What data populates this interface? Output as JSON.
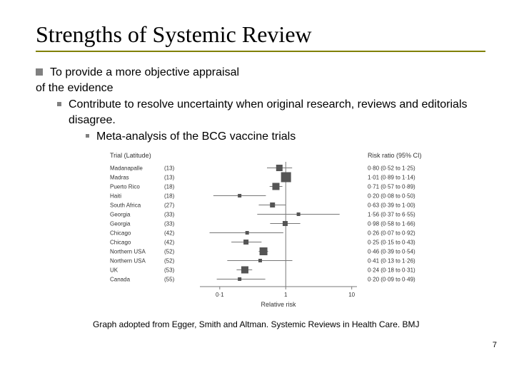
{
  "slide": {
    "title": "Strengths of Systemic Review",
    "bullet1_line1": "To provide a more objective appraisal",
    "bullet1_line2": "of the evidence",
    "bullet2": "Contribute to resolve uncertainty when original research, reviews and editorials disagree.",
    "bullet3": "Meta-analysis of the BCG vaccine trials",
    "caption": "Graph adopted from Egger, Smith and Altman. Systemic Reviews in Health Care. BMJ",
    "page_number": "7"
  },
  "forest": {
    "type": "forest-plot",
    "left_header": "Trial (Latitude)",
    "right_header": "Risk ratio (95% CI)",
    "x_label": "Relative risk",
    "x_scale": "log",
    "x_ticks": [
      0.1,
      1,
      10
    ],
    "x_tick_labels": [
      "0·1",
      "1",
      "10"
    ],
    "xlim": [
      0.05,
      12
    ],
    "font_family": "sans-serif",
    "font_size_pt": 8,
    "background_color": "#ffffff",
    "axis_color": "#7a7a7a",
    "marker_color": "#555555",
    "ci_line_color": "#777777",
    "ci_line_width": 1,
    "trials": [
      {
        "label": "Madanapalle",
        "lat": 13,
        "rr": 0.8,
        "lo": 0.52,
        "hi": 1.25,
        "rr_txt": "0·80 (0·52 to 1·25)",
        "size": 9
      },
      {
        "label": "Madras",
        "lat": 13,
        "rr": 1.01,
        "lo": 0.89,
        "hi": 1.14,
        "rr_txt": "1·01 (0·89 to 1·14)",
        "size": 14
      },
      {
        "label": "Puerto Rico",
        "lat": 18,
        "rr": 0.71,
        "lo": 0.57,
        "hi": 0.89,
        "rr_txt": "0·71 (0·57 to 0·89)",
        "size": 10
      },
      {
        "label": "Haiti",
        "lat": 18,
        "rr": 0.2,
        "lo": 0.08,
        "hi": 0.5,
        "rr_txt": "0·20 (0·08 to 0·50)",
        "size": 5
      },
      {
        "label": "South Africa",
        "lat": 27,
        "rr": 0.63,
        "lo": 0.39,
        "hi": 1.0,
        "rr_txt": "0·63 (0·39 to 1·00)",
        "size": 7
      },
      {
        "label": "Georgia",
        "lat": 33,
        "rr": 1.56,
        "lo": 0.37,
        "hi": 6.55,
        "rr_txt": "1·56 (0·37 to 6·55)",
        "size": 5
      },
      {
        "label": "Georgia",
        "lat": 33,
        "rr": 0.98,
        "lo": 0.58,
        "hi": 1.66,
        "rr_txt": "0·98 (0·58 to 1·66)",
        "size": 7
      },
      {
        "label": "Chicago",
        "lat": 42,
        "rr": 0.26,
        "lo": 0.07,
        "hi": 0.92,
        "rr_txt": "0·26 (0·07 to 0·92)",
        "size": 5
      },
      {
        "label": "Chicago",
        "lat": 42,
        "rr": 0.25,
        "lo": 0.15,
        "hi": 0.43,
        "rr_txt": "0·25 (0·15 to 0·43)",
        "size": 7
      },
      {
        "label": "Northern USA",
        "lat": 52,
        "rr": 0.46,
        "lo": 0.39,
        "hi": 0.54,
        "rr_txt": "0·46 (0·39 to 0·54)",
        "size": 11
      },
      {
        "label": "Northern USA",
        "lat": 52,
        "rr": 0.41,
        "lo": 0.13,
        "hi": 1.26,
        "rr_txt": "0·41 (0·13 to 1·26)",
        "size": 5
      },
      {
        "label": "UK",
        "lat": 53,
        "rr": 0.24,
        "lo": 0.18,
        "hi": 0.31,
        "rr_txt": "0·24 (0·18 to 0·31)",
        "size": 10
      },
      {
        "label": "Canada",
        "lat": 55,
        "rr": 0.2,
        "lo": 0.09,
        "hi": 0.49,
        "rr_txt": "0·20 (0·09 to 0·49)",
        "size": 5
      }
    ]
  }
}
